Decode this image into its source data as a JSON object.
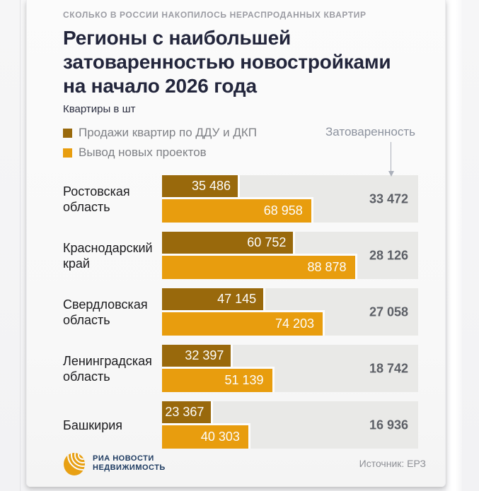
{
  "page": {
    "eyebrow": "СКОЛЬКО В РОССИИ НАКОПИЛОСЬ НЕРАСПРОДАННЫХ КВАРТИР",
    "title_lines": [
      "Регионы с наибольшей",
      "затоваренностью новостройками",
      "на начало 2026 года"
    ],
    "subtitle": "Квартиры в шт",
    "annotation": "Затоваренность",
    "source": "Источник: ЕРЗ",
    "logo_lines": [
      "РИА НОВОСТИ",
      "НЕДВИЖИМОСТЬ"
    ],
    "logo_color": "#E8A013"
  },
  "legend": [
    {
      "label": "Продажи квартир по ДДУ и ДКП",
      "color": "#99690C"
    },
    {
      "label": "Вывод новых проектов",
      "color": "#E89D0E"
    }
  ],
  "chart_data": {
    "type": "bar",
    "orientation": "horizontal",
    "title": "Регионы с наибольшей затоваренностью новостройками на начало 2026 года",
    "unit": "Квартиры в шт",
    "categories": [
      "Ростовская область",
      "Краснодарский край",
      "Свердловская область",
      "Ленинградская область",
      "Башкирия"
    ],
    "series": [
      {
        "name": "Продажи квартир по ДДУ и ДКП",
        "color": "#99690C",
        "values": [
          35486,
          60752,
          47145,
          32397,
          23367
        ]
      },
      {
        "name": "Вывод новых проектов",
        "color": "#E89D0E",
        "values": [
          68958,
          88878,
          74203,
          51139,
          40303
        ]
      }
    ],
    "annotations": {
      "name": "Затоваренность",
      "values": [
        33472,
        28126,
        27058,
        18742,
        16936
      ]
    },
    "axis_max": 116750,
    "track_color": "#E9E9E7",
    "grid": false,
    "legend_position": "top-left"
  }
}
